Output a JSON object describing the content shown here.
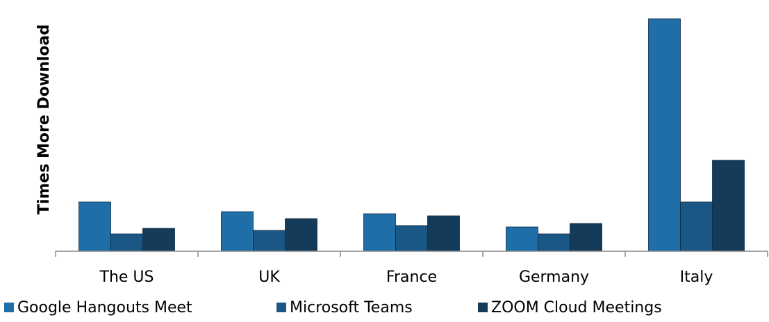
{
  "chart_data": {
    "type": "bar",
    "y_label": "Times More Download",
    "categories": [
      "The US",
      "UK",
      "France",
      "Germany",
      "Italy"
    ],
    "series": [
      {
        "name": "Google Hangouts Meet",
        "color": "#1f6ea7",
        "values": [
          71,
          57,
          54,
          35,
          335
        ]
      },
      {
        "name": "Microsoft Teams",
        "color": "#1b5784",
        "values": [
          25,
          30,
          37,
          25,
          71
        ]
      },
      {
        "name": "ZOOM Cloud Meetings",
        "color": "#153b5a",
        "values": [
          33,
          47,
          51,
          40,
          131
        ]
      }
    ],
    "ylim": [
      0,
      340
    ],
    "legend": "bottom"
  }
}
